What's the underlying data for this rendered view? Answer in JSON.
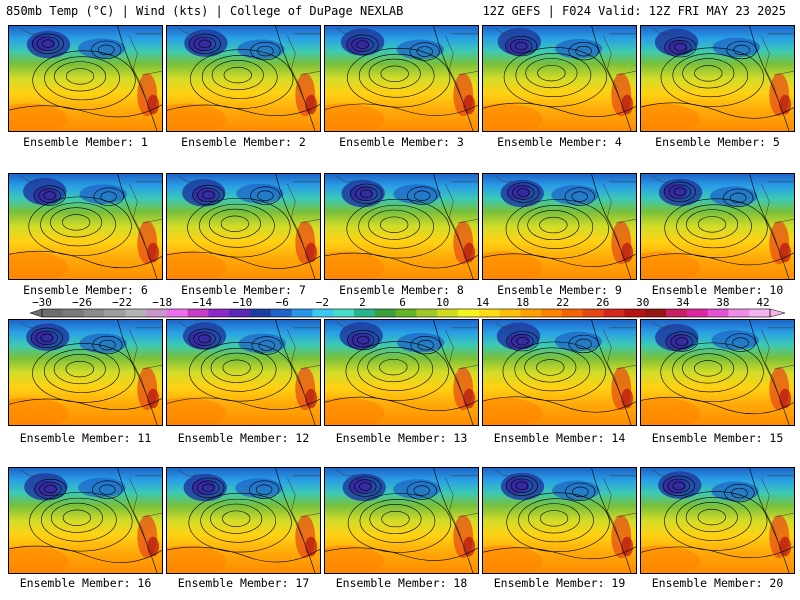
{
  "header": {
    "left": "850mb Temp (°C) | Wind (kts) | College of DuPage NEXLAB",
    "right": "12Z GEFS | F024 Valid: 12Z FRI MAY 23 2025"
  },
  "member_prefix": "Ensemble Member:",
  "members": [
    "1",
    "2",
    "3",
    "4",
    "5",
    "6",
    "7",
    "8",
    "9",
    "10",
    "11",
    "12",
    "13",
    "14",
    "15",
    "16",
    "17",
    "18",
    "19",
    "20"
  ],
  "colorbar": {
    "ticks": [
      "-30",
      "-26",
      "-22",
      "-18",
      "-14",
      "-10",
      "-6",
      "-2",
      "2",
      "6",
      "10",
      "14",
      "18",
      "22",
      "26",
      "30",
      "34",
      "38",
      "42"
    ],
    "colors": [
      "#6e6e6e",
      "#7a7a7a",
      "#8c8c8c",
      "#9e9e9e",
      "#b4b4b4",
      "#c896c8",
      "#ee6eee",
      "#c83cc8",
      "#8c28c8",
      "#5a28b4",
      "#1e3ca0",
      "#1e64c8",
      "#2896e6",
      "#3cc8f0",
      "#46dcc8",
      "#28b48c",
      "#3ca03c",
      "#64b428",
      "#a0c828",
      "#d2dc1e",
      "#f5f51e",
      "#ffdc14",
      "#ffbe0a",
      "#ffa000",
      "#ff8200",
      "#f56400",
      "#e64614",
      "#d2281e",
      "#b41414",
      "#961414",
      "#c81e64",
      "#dc28a0",
      "#e650d2",
      "#f08ce6",
      "#f5b4f0"
    ]
  }
}
